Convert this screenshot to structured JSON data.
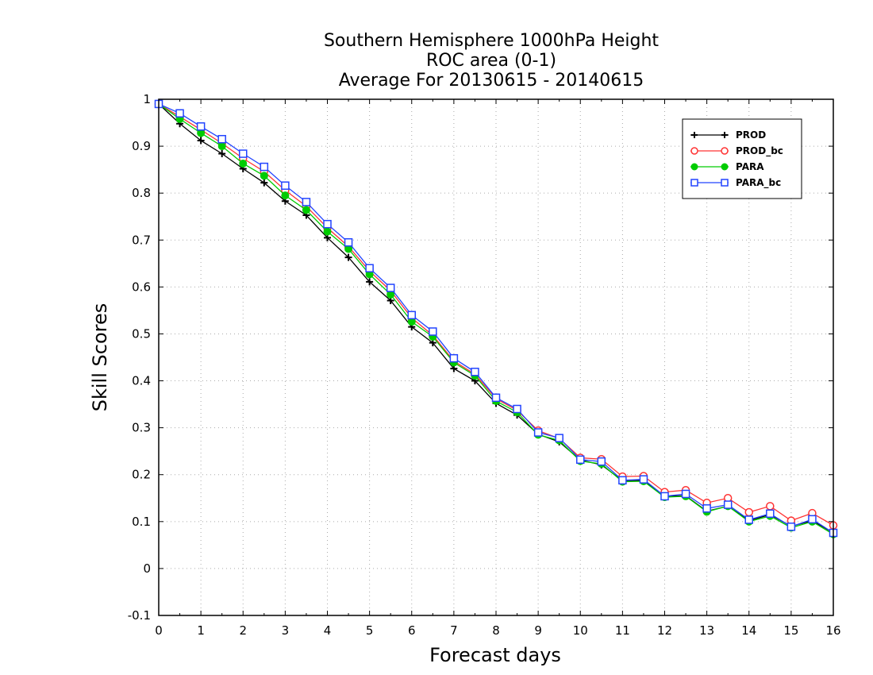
{
  "chart_data": {
    "type": "line",
    "title": [
      "Southern Hemisphere 1000hPa Height",
      "ROC area (0-1)",
      "Average For 20130615 - 20140615"
    ],
    "xlabel": "Forecast days",
    "ylabel": "Skill Scores",
    "xlim": [
      0,
      16
    ],
    "ylim": [
      -0.1,
      1
    ],
    "xticks": [
      0,
      1,
      2,
      3,
      4,
      5,
      6,
      7,
      8,
      9,
      10,
      11,
      12,
      13,
      14,
      15,
      16
    ],
    "yticks": [
      -0.1,
      0,
      0.1,
      0.2,
      0.3,
      0.4,
      0.5,
      0.6,
      0.7,
      0.8,
      0.9,
      1
    ],
    "ytick_labels": [
      "-0.1",
      "0",
      "0.1",
      "0.2",
      "0.3",
      "0.4",
      "0.5",
      "0.6",
      "0.7",
      "0.8",
      "0.9",
      "1"
    ],
    "grid": true,
    "legend_position": "top-right",
    "x": [
      0,
      0.5,
      1,
      1.5,
      2,
      2.5,
      3,
      3.5,
      4,
      4.5,
      5,
      5.5,
      6,
      6.5,
      7,
      7.5,
      8,
      8.5,
      9,
      9.5,
      10,
      10.5,
      11,
      11.5,
      12,
      12.5,
      13,
      13.5,
      14,
      14.5,
      15,
      15.5,
      16
    ],
    "series": [
      {
        "name": "PROD",
        "color": "#000000",
        "marker": "plus",
        "values": [
          0.99,
          0.948,
          0.912,
          0.884,
          0.852,
          0.822,
          0.783,
          0.753,
          0.705,
          0.663,
          0.611,
          0.571,
          0.515,
          0.481,
          0.426,
          0.4,
          0.352,
          0.327,
          0.286,
          0.27,
          0.231,
          0.221,
          0.187,
          0.188,
          0.154,
          0.155,
          0.122,
          0.133,
          0.102,
          0.115,
          0.09,
          0.102,
          0.076
        ]
      },
      {
        "name": "PROD_bc",
        "color": "#ff3333",
        "marker": "circle",
        "values": [
          0.99,
          0.963,
          0.935,
          0.906,
          0.874,
          0.846,
          0.806,
          0.772,
          0.726,
          0.686,
          0.634,
          0.592,
          0.534,
          0.497,
          0.442,
          0.414,
          0.362,
          0.337,
          0.294,
          0.277,
          0.236,
          0.233,
          0.196,
          0.197,
          0.163,
          0.167,
          0.14,
          0.15,
          0.12,
          0.133,
          0.102,
          0.118,
          0.092
        ]
      },
      {
        "name": "PARA",
        "color": "#00cc00",
        "marker": "filled-circle",
        "values": [
          0.99,
          0.958,
          0.928,
          0.9,
          0.863,
          0.837,
          0.795,
          0.764,
          0.718,
          0.681,
          0.627,
          0.584,
          0.526,
          0.494,
          0.439,
          0.411,
          0.357,
          0.333,
          0.285,
          0.273,
          0.229,
          0.223,
          0.185,
          0.186,
          0.152,
          0.154,
          0.121,
          0.133,
          0.1,
          0.112,
          0.087,
          0.1,
          0.073
        ]
      },
      {
        "name": "PARA_bc",
        "color": "#2244ff",
        "marker": "square",
        "values": [
          0.99,
          0.97,
          0.942,
          0.915,
          0.884,
          0.856,
          0.816,
          0.781,
          0.734,
          0.695,
          0.64,
          0.598,
          0.54,
          0.505,
          0.448,
          0.419,
          0.364,
          0.34,
          0.29,
          0.278,
          0.232,
          0.228,
          0.188,
          0.19,
          0.154,
          0.159,
          0.128,
          0.136,
          0.104,
          0.117,
          0.089,
          0.105,
          0.076
        ]
      }
    ]
  }
}
